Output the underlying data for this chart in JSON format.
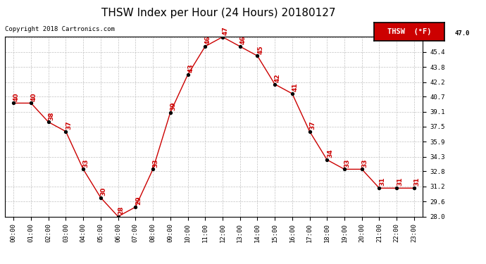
{
  "title": "THSW Index per Hour (24 Hours) 20180127",
  "copyright": "Copyright 2018 Cartronics.com",
  "legend_label": "THSW  (°F)",
  "hours": [
    0,
    1,
    2,
    3,
    4,
    5,
    6,
    7,
    8,
    9,
    10,
    11,
    12,
    13,
    14,
    15,
    16,
    17,
    18,
    19,
    20,
    21,
    22,
    23
  ],
  "values": [
    40,
    40,
    38,
    37,
    33,
    30,
    28,
    29,
    33,
    39,
    43,
    46,
    47,
    46,
    45,
    42,
    41,
    37,
    34,
    33,
    33,
    31,
    31,
    31
  ],
  "ylim": [
    28.0,
    47.0
  ],
  "yticks": [
    28.0,
    29.6,
    31.2,
    32.8,
    34.3,
    35.9,
    37.5,
    39.1,
    40.7,
    42.2,
    43.8,
    45.4,
    47.0
  ],
  "line_color": "#cc0000",
  "dot_color": "#000000",
  "label_color": "#cc0000",
  "bg_color": "#ffffff",
  "grid_color": "#bbbbbb",
  "title_fontsize": 11,
  "label_fontsize": 6.5,
  "tick_fontsize": 6.5,
  "copyright_fontsize": 6.5,
  "legend_fontsize": 7.5
}
